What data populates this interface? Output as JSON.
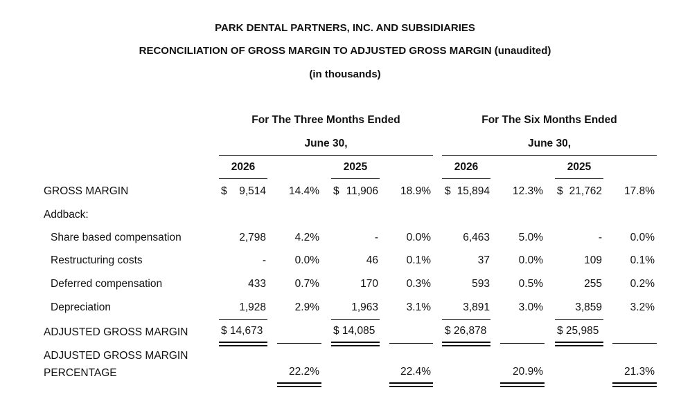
{
  "title": {
    "company": "PARK DENTAL PARTNERS, INC. AND SUBSIDIARIES",
    "report": "RECONCILIATION OF GROSS MARGIN TO ADJUSTED GROSS MARGIN (unaudited)",
    "units": "(in thousands)"
  },
  "periods": {
    "three_months": {
      "line1": "For The Three Months Ended",
      "line2": "June 30,"
    },
    "six_months": {
      "line1": "For The Six Months Ended",
      "line2": "June 30,"
    }
  },
  "years": [
    "2026",
    "2025",
    "2026",
    "2025"
  ],
  "rows": {
    "gross_margin": {
      "label": "GROSS MARGIN",
      "v": [
        {
          "cur": "$",
          "amt": "9,514",
          "pct": "14.4%"
        },
        {
          "cur": "$",
          "amt": "11,906",
          "pct": "18.9%"
        },
        {
          "cur": "$",
          "amt": "15,894",
          "pct": "12.3%"
        },
        {
          "cur": "$",
          "amt": "21,762",
          "pct": "17.8%"
        }
      ]
    },
    "addback": {
      "label": "Addback:"
    },
    "share_based": {
      "label": "Share based compensation",
      "v": [
        {
          "amt": "2,798",
          "pct": "4.2%"
        },
        {
          "amt": "-",
          "pct": "0.0%"
        },
        {
          "amt": "6,463",
          "pct": "5.0%"
        },
        {
          "amt": "-",
          "pct": "0.0%"
        }
      ]
    },
    "restructuring": {
      "label": "Restructuring costs",
      "v": [
        {
          "amt": "-",
          "pct": "0.0%"
        },
        {
          "amt": "46",
          "pct": "0.1%"
        },
        {
          "amt": "37",
          "pct": "0.0%"
        },
        {
          "amt": "109",
          "pct": "0.1%"
        }
      ]
    },
    "deferred": {
      "label": "Deferred compensation",
      "v": [
        {
          "amt": "433",
          "pct": "0.7%"
        },
        {
          "amt": "170",
          "pct": "0.3%"
        },
        {
          "amt": "593",
          "pct": "0.5%"
        },
        {
          "amt": "255",
          "pct": "0.2%"
        }
      ]
    },
    "depreciation": {
      "label": "Depreciation",
      "v": [
        {
          "amt": "1,928",
          "pct": "2.9%"
        },
        {
          "amt": "1,963",
          "pct": "3.1%"
        },
        {
          "amt": "3,891",
          "pct": "3.0%"
        },
        {
          "amt": "3,859",
          "pct": "3.2%"
        }
      ]
    },
    "adjusted": {
      "label": "ADJUSTED GROSS MARGIN",
      "v": [
        {
          "amt": "$ 14,673"
        },
        {
          "amt": "$ 14,085"
        },
        {
          "amt": "$ 26,878"
        },
        {
          "amt": "$ 25,985"
        }
      ]
    },
    "adjusted_pct": {
      "label_line1": "ADJUSTED GROSS MARGIN",
      "label_line2": "PERCENTAGE",
      "v": [
        "22.2%",
        "22.4%",
        "20.9%",
        "21.3%"
      ]
    }
  }
}
